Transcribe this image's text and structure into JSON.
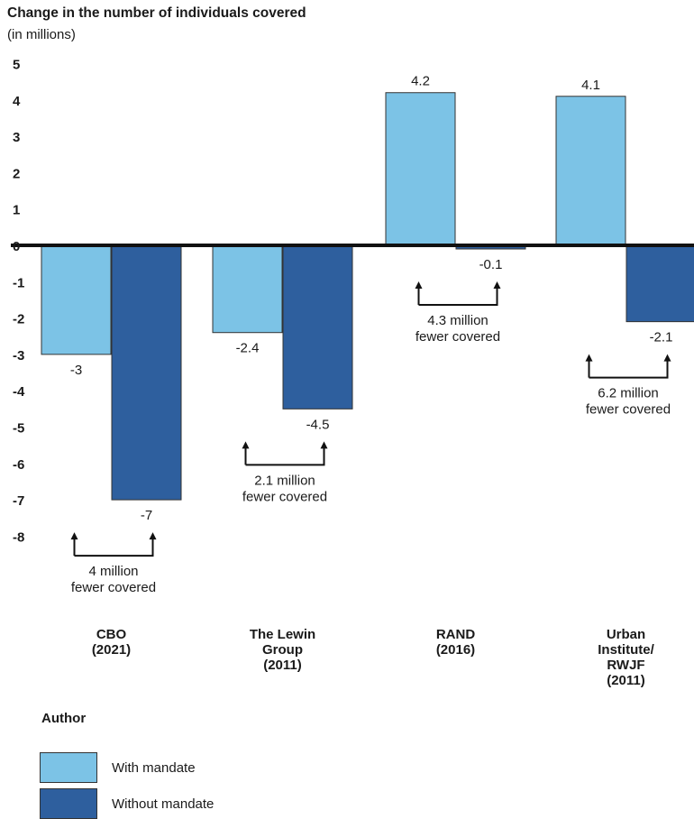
{
  "chart_data": {
    "type": "bar",
    "title": "Change in the number of individuals covered",
    "subtitle": "(in millions)",
    "categories": [
      "CBO (2021)",
      "The Lewin Group (2011)",
      "RAND (2016)",
      "Urban Institute/ RWJF (2011)"
    ],
    "category_lines": [
      [
        "CBO",
        "(2021)"
      ],
      [
        "The Lewin",
        "Group",
        "(2011)"
      ],
      [
        "RAND",
        "(2016)"
      ],
      [
        "Urban",
        "Institute/",
        "RWJF",
        "(2011)"
      ]
    ],
    "series": [
      {
        "name": "With mandate",
        "color": "#7cc3e6",
        "values": [
          -3,
          -2.4,
          4.2,
          4.1
        ],
        "labels": [
          "-3",
          "-2.4",
          "4.2",
          "4.1"
        ]
      },
      {
        "name": "Without mandate",
        "color": "#2e5f9e",
        "values": [
          -7,
          -4.5,
          -0.1,
          -2.1
        ],
        "labels": [
          "-7",
          "-4.5",
          "-0.1",
          "-2.1"
        ]
      }
    ],
    "yticks": [
      5,
      4,
      3,
      2,
      1,
      0,
      -1,
      -2,
      -3,
      -4,
      -5,
      -6,
      -7,
      -8
    ],
    "ylim": [
      -8,
      5
    ],
    "annotations": [
      [
        "4 million",
        "fewer covered"
      ],
      [
        "2.1 million",
        "fewer covered"
      ],
      [
        "4.3 million",
        "fewer covered"
      ],
      [
        "6.2 million",
        "fewer covered"
      ]
    ],
    "legend_title": "Author",
    "legend_position": "bottom-left"
  }
}
